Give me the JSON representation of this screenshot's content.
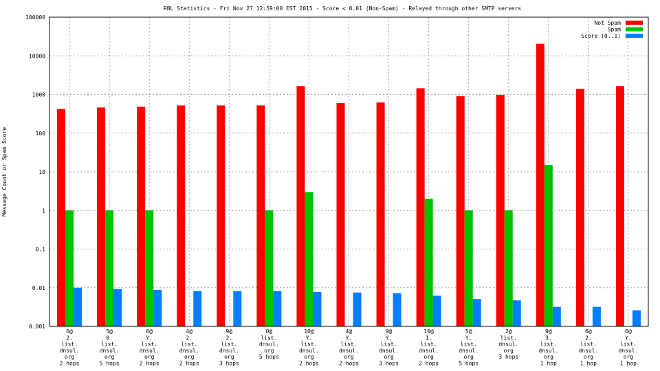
{
  "chart_data": {
    "type": "bar",
    "title": "RBL Statistics - Fri Nov 27 12:59:00 EST 2015 - Score < 0.01 (Non-Spam) - Relayed through other SMTP servers",
    "ylabel": "Message Count or Spam Score",
    "xlabel": "",
    "yscale": "log",
    "ylim": [
      0.001,
      100000
    ],
    "yticks": [
      "0.001",
      "0.01",
      "0.1",
      "1",
      "10",
      "100",
      "1000",
      "10000",
      "100000"
    ],
    "grid": true,
    "legend_position": "top-right",
    "categories": [
      [
        "6@",
        "2.",
        "list.",
        "dnsul.",
        "org",
        "2 hops"
      ],
      [
        "5@",
        "0.",
        "list.",
        "dnsul.",
        "org",
        "5 hops"
      ],
      [
        "6@",
        "Y.",
        "list.",
        "dnsul.",
        "org",
        "2 hops"
      ],
      [
        "4@",
        "2.",
        "list.",
        "dnsul.",
        "org",
        "2 hops"
      ],
      [
        "9@",
        "2.",
        "list.",
        "dnsul.",
        "org",
        "3 hops"
      ],
      [
        "0@",
        "list.",
        "dnsul.",
        "org",
        "5 hops"
      ],
      [
        "10@",
        "Y.",
        "list.",
        "dnsul.",
        "org",
        "2 hops"
      ],
      [
        "4@",
        "Y.",
        "list.",
        "dnsul.",
        "org",
        "2 hops"
      ],
      [
        "9@",
        "Y.",
        "list.",
        "dnsul.",
        "org",
        "3 hops"
      ],
      [
        "10@",
        "1.",
        "list.",
        "dnsul.",
        "org",
        "2 hops"
      ],
      [
        "5@",
        "Y.",
        "list.",
        "dnsul.",
        "org",
        "5 hops"
      ],
      [
        "2@",
        "list.",
        "dnsul.",
        "org",
        "3 hops"
      ],
      [
        "9@",
        "3.",
        "list.",
        "dnsul.",
        "org",
        "1 hop"
      ],
      [
        "6@",
        "2.",
        "list.",
        "dnsul.",
        "org",
        "1 hop"
      ],
      [
        "6@",
        "Y.",
        "list.",
        "dnsul.",
        "org",
        "1 hop"
      ]
    ],
    "series": [
      {
        "name": "Not Spam",
        "color": "#ff0000",
        "values": [
          420,
          460,
          480,
          520,
          520,
          520,
          1650,
          600,
          620,
          1450,
          900,
          980,
          20500,
          1400,
          1650
        ]
      },
      {
        "name": "Spam",
        "color": "#00c000",
        "values": [
          1,
          1,
          1,
          null,
          null,
          1,
          3,
          null,
          null,
          2,
          1,
          1,
          15,
          null,
          null
        ]
      },
      {
        "name": "Score (0..1)",
        "color": "#0080ff",
        "values": [
          0.01,
          0.0092,
          0.0088,
          0.0082,
          0.0082,
          0.0082,
          0.0078,
          0.0075,
          0.0072,
          0.0062,
          0.0051,
          0.0047,
          0.0032,
          0.0032,
          0.0026
        ]
      }
    ]
  }
}
